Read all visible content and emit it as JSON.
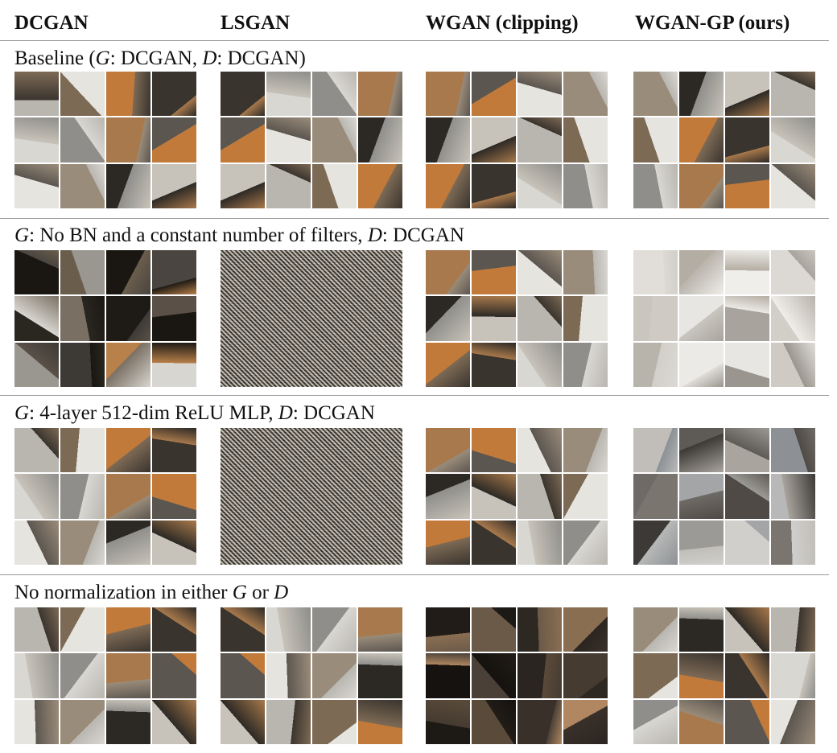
{
  "columns": [
    "DCGAN",
    "LSGAN",
    "WGAN (clipping)",
    "WGAN-GP (ours)"
  ],
  "rows": [
    {
      "label_parts": [
        {
          "t": "Baseline (",
          "i": false
        },
        {
          "t": "G",
          "i": true
        },
        {
          "t": ": DCGAN, ",
          "i": false
        },
        {
          "t": "D",
          "i": true
        },
        {
          "t": ": DCGAN)",
          "i": false
        }
      ],
      "cells": [
        {
          "kind": "samples",
          "tone": "bedroom"
        },
        {
          "kind": "samples",
          "tone": "bedroom"
        },
        {
          "kind": "samples",
          "tone": "bedroom"
        },
        {
          "kind": "samples",
          "tone": "bedroom"
        }
      ]
    },
    {
      "label_parts": [
        {
          "t": "G",
          "i": true
        },
        {
          "t": ": No BN and a constant number of filters, ",
          "i": false
        },
        {
          "t": "D",
          "i": true
        },
        {
          "t": ": DCGAN",
          "i": false
        }
      ],
      "cells": [
        {
          "kind": "samples",
          "tone": "collapse"
        },
        {
          "kind": "noise",
          "tone": "noise"
        },
        {
          "kind": "samples",
          "tone": "bedroom"
        },
        {
          "kind": "samples",
          "tone": "light"
        }
      ]
    },
    {
      "label_parts": [
        {
          "t": "G",
          "i": true
        },
        {
          "t": ": 4-layer 512-dim ReLU MLP, ",
          "i": false
        },
        {
          "t": "D",
          "i": true
        },
        {
          "t": ": DCGAN",
          "i": false
        }
      ],
      "cells": [
        {
          "kind": "samples",
          "tone": "bedroom"
        },
        {
          "kind": "noise",
          "tone": "noise"
        },
        {
          "kind": "samples",
          "tone": "bedroom"
        },
        {
          "kind": "samples",
          "tone": "cool"
        }
      ]
    },
    {
      "label_parts": [
        {
          "t": "No normalization in either ",
          "i": false
        },
        {
          "t": "G",
          "i": true
        },
        {
          "t": " or ",
          "i": false
        },
        {
          "t": "D",
          "i": true
        }
      ],
      "cells": [
        {
          "kind": "samples",
          "tone": "bedroom"
        },
        {
          "kind": "samples",
          "tone": "bedroom"
        },
        {
          "kind": "samples",
          "tone": "dark"
        },
        {
          "kind": "samples",
          "tone": "bedroom"
        }
      ]
    }
  ],
  "palettes": {
    "bedroom": [
      "#b9b6b0",
      "#7d6a55",
      "#c27a3a",
      "#3a342e",
      "#d9d7d2",
      "#8f8e8a",
      "#a8794c",
      "#5c5650",
      "#e6e4df",
      "#9a8c7a",
      "#2c2925",
      "#c8c3ba"
    ],
    "collapse": [
      "#1a1712",
      "#6a5d4c",
      "#1a1712",
      "#4a4540",
      "#2a2620",
      "#7a6f63",
      "#1e1a15",
      "#5a5048",
      "#9a9690",
      "#3d3a35",
      "#b8804a",
      "#d8d6d0"
    ],
    "light": [
      "#dcd9d4",
      "#c9c5bf",
      "#e8e6e2",
      "#a8a49d",
      "#d2cfc9",
      "#b8b3ab",
      "#eceae6",
      "#9a958e",
      "#cfcac3",
      "#e1deda",
      "#b4ada3",
      "#f0eeea"
    ],
    "cool": [
      "#8d9195",
      "#6e6a66",
      "#a3a5a6",
      "#4f4a45",
      "#b7b8b7",
      "#3c3936",
      "#9c9a96",
      "#d0cfcc",
      "#7a756f",
      "#c1beb9",
      "#5e5a55",
      "#a9a49d"
    ],
    "dark": [
      "#2a2520",
      "#463b31",
      "#1d1915",
      "#5a4a3a",
      "#3a302a",
      "#b08760",
      "#211c17",
      "#6b5a48",
      "#2e2822",
      "#8a6e52",
      "#15120f",
      "#4a4038"
    ]
  }
}
